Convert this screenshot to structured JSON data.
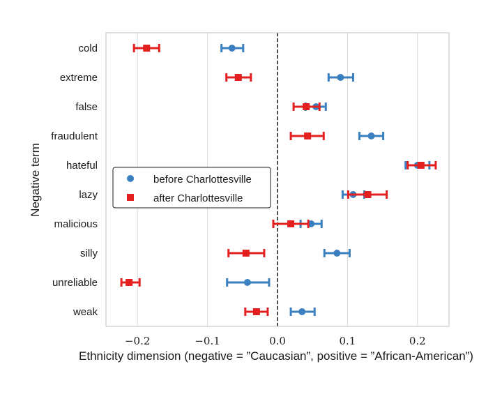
{
  "chart_data": {
    "type": "scatter",
    "xlabel": "Ethnicity dimension (negative = ”Caucasian”, positive = ”African-American”)",
    "ylabel": "Negative term",
    "categories": [
      "cold",
      "extreme",
      "false",
      "fraudulent",
      "hateful",
      "lazy",
      "malicious",
      "silly",
      "unreliable",
      "weak"
    ],
    "xlim": [
      -0.245,
      0.245
    ],
    "xticks": [
      -0.2,
      -0.1,
      0.0,
      0.1,
      0.2
    ],
    "xtick_labels": [
      "−0.2",
      "−0.1",
      "0.0",
      "0.1",
      "0.2"
    ],
    "grid": "vertical",
    "reference_line": {
      "x": 0.0,
      "style": "dashed"
    },
    "legend": {
      "position": "center-left"
    },
    "series": [
      {
        "name": "before Charlottesville",
        "marker": "circle",
        "color": "#3a7fbf",
        "values": [
          -0.065,
          0.09,
          0.055,
          0.134,
          0.2,
          0.108,
          0.048,
          0.085,
          -0.043,
          0.035
        ],
        "err_low": [
          -0.08,
          0.073,
          0.04,
          0.117,
          0.183,
          0.093,
          0.033,
          0.067,
          -0.072,
          0.019
        ],
        "err_high": [
          -0.049,
          0.108,
          0.069,
          0.151,
          0.217,
          0.124,
          0.063,
          0.103,
          -0.012,
          0.053
        ]
      },
      {
        "name": "after Charlottesville",
        "marker": "square",
        "color": "#e3201f",
        "values": [
          -0.187,
          -0.056,
          0.041,
          0.043,
          0.205,
          0.129,
          0.019,
          -0.045,
          -0.212,
          -0.03
        ],
        "err_low": [
          -0.205,
          -0.073,
          0.023,
          0.019,
          0.186,
          0.101,
          -0.006,
          -0.07,
          -0.223,
          -0.046
        ],
        "err_high": [
          -0.169,
          -0.038,
          0.06,
          0.066,
          0.226,
          0.156,
          0.044,
          -0.019,
          -0.197,
          -0.014
        ]
      }
    ]
  }
}
